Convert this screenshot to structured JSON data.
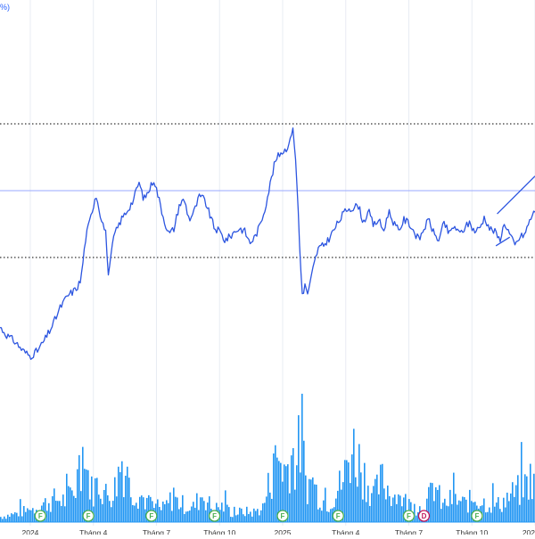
{
  "header": {
    "clipped_label": "%)"
  },
  "colors": {
    "price_line": "#2c55e0",
    "volume": "#2196f3",
    "grid": "#e8ecf3",
    "reference_line": "#9aa9ff",
    "dotted_line": "#333333",
    "axis_text": "#333333",
    "event_f": "#4caf50",
    "event_d": "#c2185b"
  },
  "chart_data": {
    "type": "line",
    "title": "",
    "xlabel": "",
    "ylabel": "",
    "x_ticks": [
      "2024",
      "Tháng 4",
      "Tháng 7",
      "Tháng 10",
      "2025",
      "Tháng 4",
      "Tháng 7",
      "Tháng 10",
      "202"
    ],
    "x_tick_positions": [
      0.0,
      0.25,
      0.5,
      0.75,
      1.0,
      1.25,
      1.5,
      1.75,
      2.0
    ],
    "x_range": [
      -0.12,
      2.0
    ],
    "price_range": [
      0,
      100
    ],
    "price_anchors": [
      [
        -0.12,
        30
      ],
      [
        -0.09,
        27
      ],
      [
        -0.06,
        25
      ],
      [
        -0.03,
        22
      ],
      [
        0.0,
        20
      ],
      [
        0.03,
        22
      ],
      [
        0.06,
        26
      ],
      [
        0.09,
        31
      ],
      [
        0.12,
        37
      ],
      [
        0.15,
        41
      ],
      [
        0.18,
        43
      ],
      [
        0.2,
        46
      ],
      [
        0.22,
        61
      ],
      [
        0.24,
        68
      ],
      [
        0.26,
        76
      ],
      [
        0.28,
        68
      ],
      [
        0.3,
        62
      ],
      [
        0.31,
        47
      ],
      [
        0.33,
        61
      ],
      [
        0.36,
        67
      ],
      [
        0.39,
        71
      ],
      [
        0.41,
        74
      ],
      [
        0.43,
        80
      ],
      [
        0.45,
        74
      ],
      [
        0.47,
        77
      ],
      [
        0.49,
        81
      ],
      [
        0.51,
        74
      ],
      [
        0.53,
        67
      ],
      [
        0.55,
        62
      ],
      [
        0.57,
        64
      ],
      [
        0.59,
        72
      ],
      [
        0.61,
        74
      ],
      [
        0.63,
        67
      ],
      [
        0.65,
        70
      ],
      [
        0.67,
        75
      ],
      [
        0.69,
        74
      ],
      [
        0.71,
        69
      ],
      [
        0.73,
        64
      ],
      [
        0.75,
        63
      ],
      [
        0.77,
        60
      ],
      [
        0.79,
        61
      ],
      [
        0.81,
        63
      ],
      [
        0.83,
        64
      ],
      [
        0.85,
        63
      ],
      [
        0.87,
        59
      ],
      [
        0.89,
        61
      ],
      [
        0.91,
        65
      ],
      [
        0.93,
        71
      ],
      [
        0.95,
        79
      ],
      [
        0.97,
        87
      ],
      [
        0.99,
        90
      ],
      [
        1.01,
        91
      ],
      [
        1.03,
        94
      ],
      [
        1.04,
        100
      ],
      [
        1.05,
        89
      ],
      [
        1.06,
        74
      ],
      [
        1.07,
        52
      ],
      [
        1.08,
        40
      ],
      [
        1.09,
        45
      ],
      [
        1.1,
        41
      ],
      [
        1.12,
        50
      ],
      [
        1.14,
        57
      ],
      [
        1.16,
        58
      ],
      [
        1.18,
        60
      ],
      [
        1.2,
        63
      ],
      [
        1.22,
        66
      ],
      [
        1.24,
        69
      ],
      [
        1.26,
        71
      ],
      [
        1.28,
        71
      ],
      [
        1.3,
        72
      ],
      [
        1.32,
        66
      ],
      [
        1.34,
        70
      ],
      [
        1.36,
        65
      ],
      [
        1.38,
        67
      ],
      [
        1.4,
        63
      ],
      [
        1.42,
        70
      ],
      [
        1.44,
        66
      ],
      [
        1.46,
        63
      ],
      [
        1.48,
        67
      ],
      [
        1.5,
        66
      ],
      [
        1.52,
        63
      ],
      [
        1.54,
        60
      ],
      [
        1.56,
        64
      ],
      [
        1.58,
        67
      ],
      [
        1.6,
        62
      ],
      [
        1.62,
        60
      ],
      [
        1.64,
        66
      ],
      [
        1.66,
        62
      ],
      [
        1.68,
        65
      ],
      [
        1.7,
        62
      ],
      [
        1.72,
        64
      ],
      [
        1.74,
        66
      ],
      [
        1.76,
        63
      ],
      [
        1.78,
        64
      ],
      [
        1.8,
        68
      ],
      [
        1.82,
        64
      ],
      [
        1.84,
        63
      ],
      [
        1.86,
        60
      ],
      [
        1.88,
        66
      ],
      [
        1.9,
        62
      ],
      [
        1.92,
        58
      ],
      [
        1.94,
        61
      ],
      [
        1.96,
        62
      ],
      [
        1.98,
        67
      ],
      [
        2.0,
        70
      ]
    ],
    "trend_segment": [
      [
        1.85,
        69
      ],
      [
        2.0,
        82
      ]
    ],
    "horizontal_levels": [
      {
        "style": "dotted",
        "value": 100
      },
      {
        "style": "solid",
        "value": 77
      },
      {
        "style": "dotted",
        "value": 54
      }
    ],
    "volume_range": [
      0,
      100
    ],
    "volume_anchors": [
      [
        -0.12,
        5
      ],
      [
        -0.06,
        8
      ],
      [
        0.0,
        12
      ],
      [
        0.06,
        18
      ],
      [
        0.1,
        22
      ],
      [
        0.14,
        20
      ],
      [
        0.18,
        35
      ],
      [
        0.2,
        70
      ],
      [
        0.22,
        52
      ],
      [
        0.24,
        30
      ],
      [
        0.27,
        38
      ],
      [
        0.3,
        25
      ],
      [
        0.33,
        30
      ],
      [
        0.36,
        60
      ],
      [
        0.39,
        33
      ],
      [
        0.42,
        28
      ],
      [
        0.45,
        22
      ],
      [
        0.48,
        14
      ],
      [
        0.52,
        12
      ],
      [
        0.56,
        22
      ],
      [
        0.6,
        17
      ],
      [
        0.64,
        13
      ],
      [
        0.68,
        27
      ],
      [
        0.72,
        12
      ],
      [
        0.76,
        15
      ],
      [
        0.8,
        8
      ],
      [
        0.84,
        10
      ],
      [
        0.88,
        9
      ],
      [
        0.92,
        14
      ],
      [
        0.95,
        42
      ],
      [
        0.98,
        62
      ],
      [
        1.01,
        48
      ],
      [
        1.03,
        68
      ],
      [
        1.05,
        55
      ],
      [
        1.07,
        79
      ],
      [
        1.09,
        38
      ],
      [
        1.12,
        34
      ],
      [
        1.15,
        22
      ],
      [
        1.18,
        18
      ],
      [
        1.21,
        29
      ],
      [
        1.24,
        41
      ],
      [
        1.27,
        72
      ],
      [
        1.3,
        58
      ],
      [
        1.33,
        40
      ],
      [
        1.36,
        25
      ],
      [
        1.39,
        40
      ],
      [
        1.42,
        30
      ],
      [
        1.45,
        24
      ],
      [
        1.48,
        20
      ],
      [
        1.52,
        14
      ],
      [
        1.56,
        13
      ],
      [
        1.6,
        36
      ],
      [
        1.63,
        15
      ],
      [
        1.67,
        22
      ],
      [
        1.72,
        17
      ],
      [
        1.76,
        23
      ],
      [
        1.8,
        18
      ],
      [
        1.85,
        16
      ],
      [
        1.9,
        25
      ],
      [
        1.95,
        32
      ],
      [
        1.98,
        42
      ],
      [
        2.0,
        30
      ]
    ],
    "events": [
      {
        "label": "F",
        "x": 0.04,
        "type": "F"
      },
      {
        "label": "F",
        "x": 0.23,
        "type": "F"
      },
      {
        "label": "F",
        "x": 0.48,
        "type": "F"
      },
      {
        "label": "F",
        "x": 0.73,
        "type": "F"
      },
      {
        "label": "F",
        "x": 1.0,
        "type": "F"
      },
      {
        "label": "F",
        "x": 1.22,
        "type": "F"
      },
      {
        "label": "F",
        "x": 1.5,
        "type": "F"
      },
      {
        "label": "D",
        "x": 1.56,
        "type": "D"
      },
      {
        "label": "F",
        "x": 1.77,
        "type": "F"
      }
    ],
    "grid": true,
    "legend": "none"
  }
}
